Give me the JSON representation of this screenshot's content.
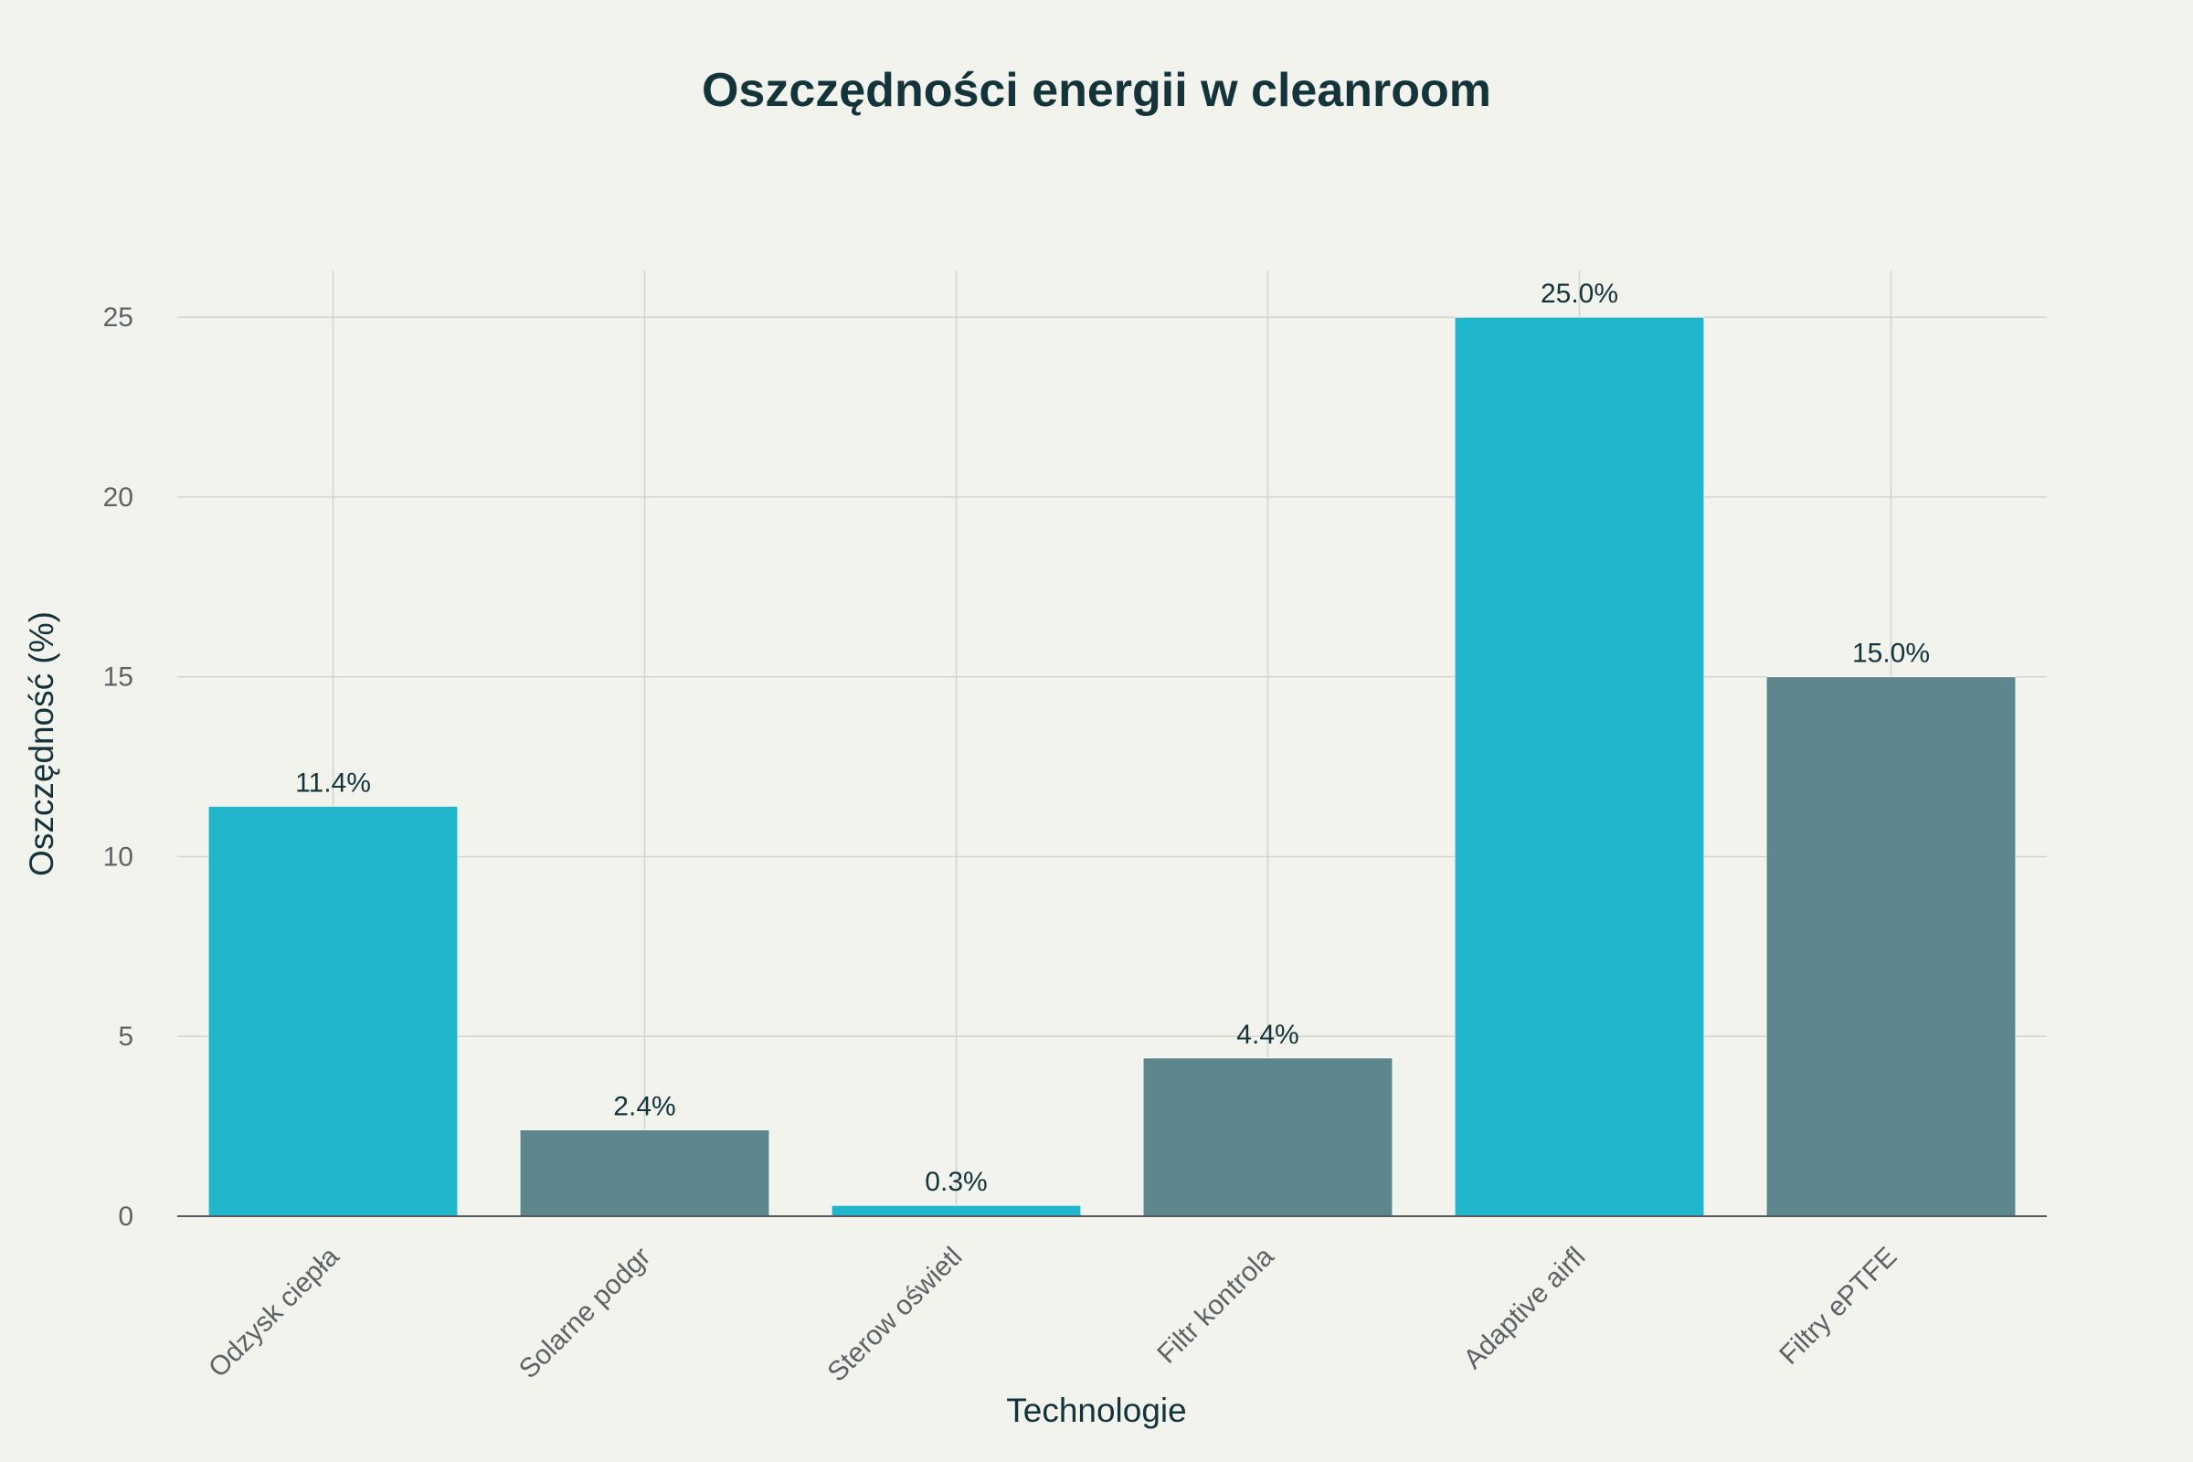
{
  "chart_data": {
    "type": "bar",
    "title": "Oszczędności energii w cleanroom",
    "xlabel": "Technologie",
    "ylabel": "Oszczędność (%)",
    "categories": [
      "Odzysk ciepła",
      "Solarne podgr",
      "Sterow oświetl",
      "Filtr kontrola",
      "Adaptive airfl",
      "Filtry ePTFE"
    ],
    "values": [
      11.4,
      2.4,
      0.3,
      4.4,
      25.0,
      15.0
    ],
    "value_labels": [
      "11.4%",
      "2.4%",
      "0.3%",
      "4.4%",
      "25.0%",
      "15.0%"
    ],
    "bar_colors": [
      "#21b6cc",
      "#5e878d",
      "#21b6cc",
      "#5e878d",
      "#21b6cc",
      "#5e878d"
    ],
    "yticks": [
      0,
      5,
      10,
      15,
      20,
      25
    ],
    "ylim": [
      0,
      26.3
    ],
    "grid": true
  }
}
